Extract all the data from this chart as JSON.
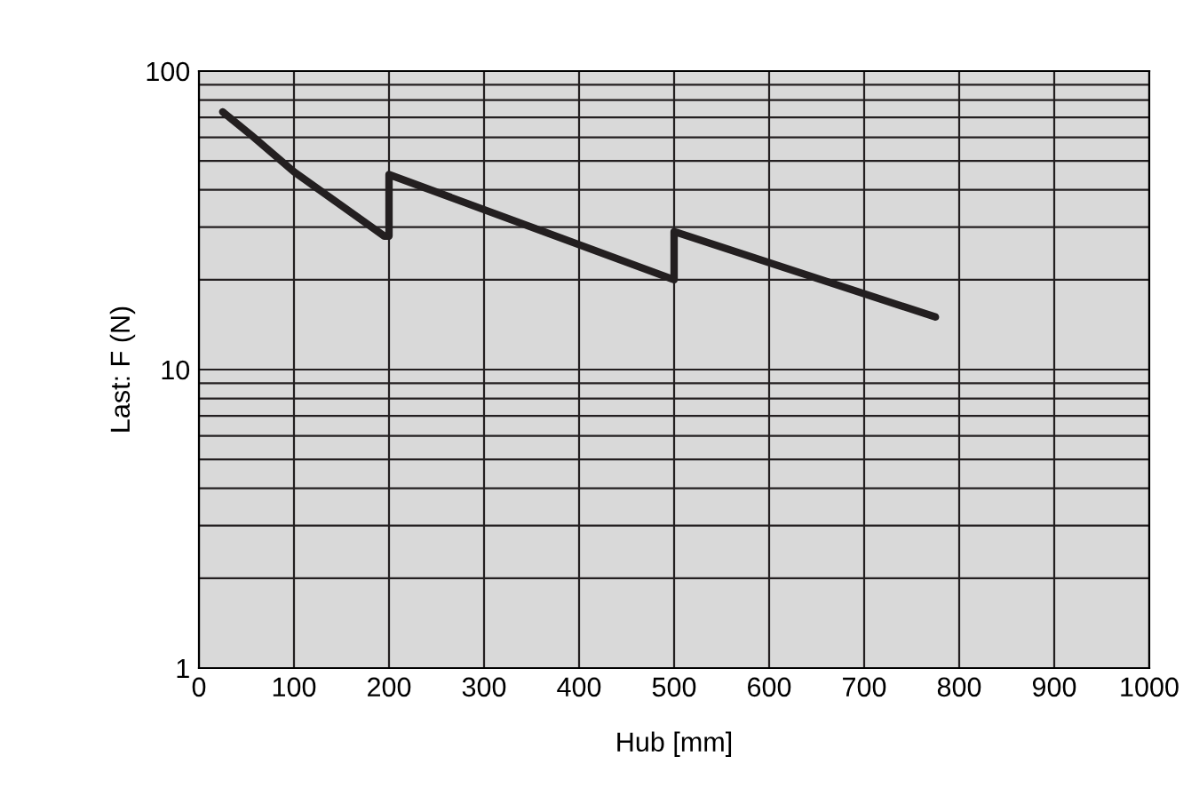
{
  "chart_data": {
    "type": "line",
    "xlabel": "Hub [mm]",
    "ylabel": "Last: F (N)",
    "log": "y",
    "grid": true,
    "legend": false,
    "marker": "none",
    "line_style": "solid",
    "series": [
      {
        "color": "#231f20",
        "x": [
          25,
          55,
          100,
          195,
          200,
          200,
          500,
          500,
          775
        ],
        "values": [
          73,
          61,
          46,
          28,
          28,
          45,
          20,
          29,
          15
        ]
      }
    ],
    "xlim": [
      0,
      1000
    ],
    "xticks": [
      0,
      100,
      200,
      300,
      400,
      500,
      600,
      700,
      800,
      900,
      1000
    ],
    "ylim": [
      1,
      100
    ],
    "yticks": [
      1,
      {
        "value": 2,
        "label": null
      },
      {
        "value": 3,
        "label": null
      },
      {
        "value": 4,
        "label": null
      },
      {
        "value": 5,
        "label": null
      },
      {
        "value": 6,
        "label": null
      },
      {
        "value": 7,
        "label": null
      },
      {
        "value": 8,
        "label": null
      },
      {
        "value": 9,
        "label": null
      },
      10,
      {
        "value": 20,
        "label": null
      },
      {
        "value": 30,
        "label": null
      },
      {
        "value": 40,
        "label": null
      },
      {
        "value": 50,
        "label": null
      },
      {
        "value": 60,
        "label": null
      },
      {
        "value": 70,
        "label": null
      },
      {
        "value": 80,
        "label": null
      },
      {
        "value": 90,
        "label": null
      },
      100
    ]
  }
}
